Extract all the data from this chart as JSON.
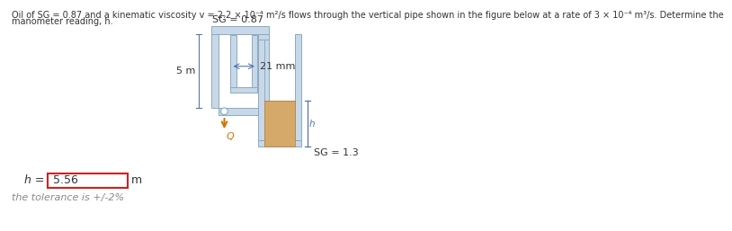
{
  "title_line1": "Oil of SG = 0.87 and a kinematic viscosity v = 2.2 × 10⁻⁴ m²/s flows through the vertical pipe shown in the figure below at a rate of 3 × 10⁻⁴ m³/s. Determine the",
  "title_line2": "manometer reading, h.",
  "sg_top_label": "SG = 0.87",
  "sg_bottom_label": "SG = 1.3",
  "dim_21mm": "21 mm",
  "dim_5m": "5 m",
  "dim_h": "h",
  "flow_label": "Q",
  "answer_label": "h =",
  "answer_value": "5.56",
  "answer_unit": "m",
  "tolerance_text": "the tolerance is +/-2%",
  "pipe_color": "#c8d8e8",
  "pipe_edge": "#8aaac0",
  "fluid_color": "#d4a96a",
  "fluid_edge": "#b08040",
  "answer_box_color": "#ff0000",
  "text_color": "#333333",
  "dim_color": "#5577aa",
  "arrow_color": "#cc7700",
  "title_color": "#333333"
}
